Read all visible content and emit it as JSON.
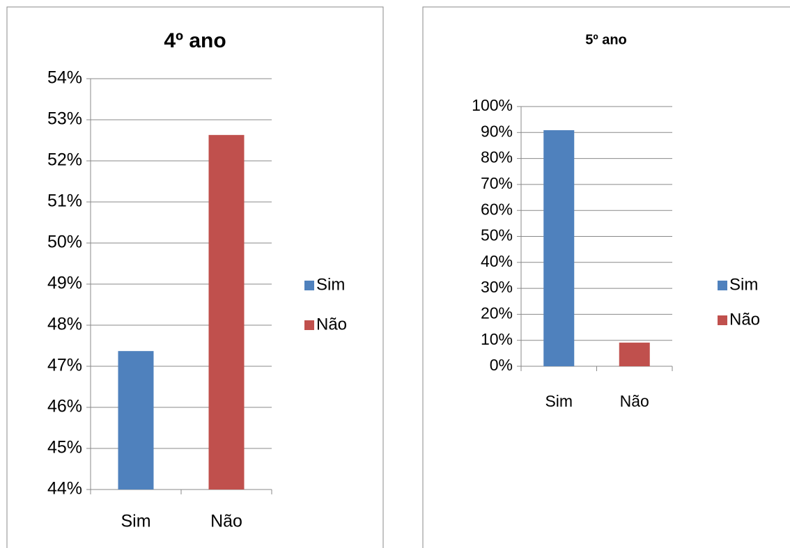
{
  "chart_data": [
    {
      "type": "bar",
      "title": "4º ano",
      "categories": [
        "Sim",
        "Não"
      ],
      "values": [
        47.37,
        52.63
      ],
      "colors": [
        "#4f81bd",
        "#c0504d"
      ],
      "ylim": [
        44,
        54
      ],
      "yticks": [
        {
          "value": 44,
          "label": "44%"
        },
        {
          "value": 45,
          "label": "45%"
        },
        {
          "value": 46,
          "label": "46%"
        },
        {
          "value": 47,
          "label": "47%"
        },
        {
          "value": 48,
          "label": "48%"
        },
        {
          "value": 49,
          "label": "49%"
        },
        {
          "value": 50,
          "label": "50%"
        },
        {
          "value": 51,
          "label": "51%"
        },
        {
          "value": 52,
          "label": "52%"
        },
        {
          "value": 53,
          "label": "53%"
        },
        {
          "value": 54,
          "label": "54%"
        }
      ],
      "grid": true,
      "legend": "right"
    },
    {
      "type": "bar",
      "title": "5º ano",
      "categories": [
        "Sim",
        "Não"
      ],
      "values": [
        90.9,
        9.1
      ],
      "colors": [
        "#4f81bd",
        "#c0504d"
      ],
      "ylim": [
        0,
        100
      ],
      "yticks": [
        {
          "value": 0,
          "label": "0%"
        },
        {
          "value": 10,
          "label": "10%"
        },
        {
          "value": 20,
          "label": "20%"
        },
        {
          "value": 30,
          "label": "30%"
        },
        {
          "value": 40,
          "label": "40%"
        },
        {
          "value": 50,
          "label": "50%"
        },
        {
          "value": 60,
          "label": "60%"
        },
        {
          "value": 70,
          "label": "70%"
        },
        {
          "value": 80,
          "label": "80%"
        },
        {
          "value": 90,
          "label": "90%"
        },
        {
          "value": 100,
          "label": "100%"
        }
      ],
      "grid": true,
      "legend": "right"
    }
  ]
}
